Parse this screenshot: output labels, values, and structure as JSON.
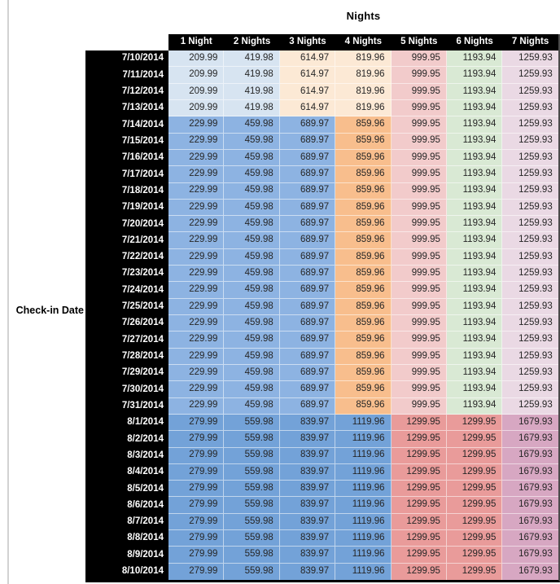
{
  "title": "Nights",
  "y_axis_label": "Check-in Date",
  "columns": [
    "1 Night",
    "2 Nights",
    "3 Nights",
    "4 Nights",
    "5 Nights",
    "6 Nights",
    "7 Nights"
  ],
  "colors": {
    "header_bg": "#000000",
    "header_text": "#ffffff",
    "value_text": "#262626",
    "zones": {
      "A": [
        "#D7E4F1",
        "#D7E4F1",
        "#FCE9D5",
        "#FCE9D5",
        "#F2CBCB",
        "#D9E9D4",
        "#EAD9E4"
      ],
      "B": [
        "#8DB3E2",
        "#8DB3E2",
        "#8DB3E2",
        "#F8BE8D",
        "#F2CBCB",
        "#D9E9D4",
        "#EAD9E4"
      ],
      "C": [
        "#73A2D8",
        "#73A2D8",
        "#73A2D8",
        "#73A2D8",
        "#E99B9A",
        "#E99B9A",
        "#D7A7C2"
      ]
    }
  },
  "chart_data": {
    "type": "table",
    "title": "Nights",
    "row_axis_label": "Check-in Date",
    "columns": [
      "1 Night",
      "2 Nights",
      "3 Nights",
      "4 Nights",
      "5 Nights",
      "6 Nights",
      "7 Nights"
    ]
  },
  "rows": [
    {
      "date": "7/10/2014",
      "zone": "A",
      "values": [
        "209.99",
        "419.98",
        "614.97",
        "819.96",
        "999.95",
        "1193.94",
        "1259.93"
      ]
    },
    {
      "date": "7/11/2014",
      "zone": "A",
      "values": [
        "209.99",
        "419.98",
        "614.97",
        "819.96",
        "999.95",
        "1193.94",
        "1259.93"
      ]
    },
    {
      "date": "7/12/2014",
      "zone": "A",
      "values": [
        "209.99",
        "419.98",
        "614.97",
        "819.96",
        "999.95",
        "1193.94",
        "1259.93"
      ]
    },
    {
      "date": "7/13/2014",
      "zone": "A",
      "values": [
        "209.99",
        "419.98",
        "614.97",
        "819.96",
        "999.95",
        "1193.94",
        "1259.93"
      ]
    },
    {
      "date": "7/14/2014",
      "zone": "B",
      "values": [
        "229.99",
        "459.98",
        "689.97",
        "859.96",
        "999.95",
        "1193.94",
        "1259.93"
      ]
    },
    {
      "date": "7/15/2014",
      "zone": "B",
      "values": [
        "229.99",
        "459.98",
        "689.97",
        "859.96",
        "999.95",
        "1193.94",
        "1259.93"
      ]
    },
    {
      "date": "7/16/2014",
      "zone": "B",
      "values": [
        "229.99",
        "459.98",
        "689.97",
        "859.96",
        "999.95",
        "1193.94",
        "1259.93"
      ]
    },
    {
      "date": "7/17/2014",
      "zone": "B",
      "values": [
        "229.99",
        "459.98",
        "689.97",
        "859.96",
        "999.95",
        "1193.94",
        "1259.93"
      ]
    },
    {
      "date": "7/18/2014",
      "zone": "B",
      "values": [
        "229.99",
        "459.98",
        "689.97",
        "859.96",
        "999.95",
        "1193.94",
        "1259.93"
      ]
    },
    {
      "date": "7/19/2014",
      "zone": "B",
      "values": [
        "229.99",
        "459.98",
        "689.97",
        "859.96",
        "999.95",
        "1193.94",
        "1259.93"
      ]
    },
    {
      "date": "7/20/2014",
      "zone": "B",
      "values": [
        "229.99",
        "459.98",
        "689.97",
        "859.96",
        "999.95",
        "1193.94",
        "1259.93"
      ]
    },
    {
      "date": "7/21/2014",
      "zone": "B",
      "values": [
        "229.99",
        "459.98",
        "689.97",
        "859.96",
        "999.95",
        "1193.94",
        "1259.93"
      ]
    },
    {
      "date": "7/22/2014",
      "zone": "B",
      "values": [
        "229.99",
        "459.98",
        "689.97",
        "859.96",
        "999.95",
        "1193.94",
        "1259.93"
      ]
    },
    {
      "date": "7/23/2014",
      "zone": "B",
      "values": [
        "229.99",
        "459.98",
        "689.97",
        "859.96",
        "999.95",
        "1193.94",
        "1259.93"
      ]
    },
    {
      "date": "7/24/2014",
      "zone": "B",
      "values": [
        "229.99",
        "459.98",
        "689.97",
        "859.96",
        "999.95",
        "1193.94",
        "1259.93"
      ]
    },
    {
      "date": "7/25/2014",
      "zone": "B",
      "values": [
        "229.99",
        "459.98",
        "689.97",
        "859.96",
        "999.95",
        "1193.94",
        "1259.93"
      ]
    },
    {
      "date": "7/26/2014",
      "zone": "B",
      "values": [
        "229.99",
        "459.98",
        "689.97",
        "859.96",
        "999.95",
        "1193.94",
        "1259.93"
      ]
    },
    {
      "date": "7/27/2014",
      "zone": "B",
      "values": [
        "229.99",
        "459.98",
        "689.97",
        "859.96",
        "999.95",
        "1193.94",
        "1259.93"
      ]
    },
    {
      "date": "7/28/2014",
      "zone": "B",
      "values": [
        "229.99",
        "459.98",
        "689.97",
        "859.96",
        "999.95",
        "1193.94",
        "1259.93"
      ]
    },
    {
      "date": "7/29/2014",
      "zone": "B",
      "values": [
        "229.99",
        "459.98",
        "689.97",
        "859.96",
        "999.95",
        "1193.94",
        "1259.93"
      ]
    },
    {
      "date": "7/30/2014",
      "zone": "B",
      "values": [
        "229.99",
        "459.98",
        "689.97",
        "859.96",
        "999.95",
        "1193.94",
        "1259.93"
      ]
    },
    {
      "date": "7/31/2014",
      "zone": "B",
      "values": [
        "229.99",
        "459.98",
        "689.97",
        "859.96",
        "999.95",
        "1193.94",
        "1259.93"
      ]
    },
    {
      "date": "8/1/2014",
      "zone": "C",
      "values": [
        "279.99",
        "559.98",
        "839.97",
        "1119.96",
        "1299.95",
        "1299.95",
        "1679.93"
      ]
    },
    {
      "date": "8/2/2014",
      "zone": "C",
      "values": [
        "279.99",
        "559.98",
        "839.97",
        "1119.96",
        "1299.95",
        "1299.95",
        "1679.93"
      ]
    },
    {
      "date": "8/3/2014",
      "zone": "C",
      "values": [
        "279.99",
        "559.98",
        "839.97",
        "1119.96",
        "1299.95",
        "1299.95",
        "1679.93"
      ]
    },
    {
      "date": "8/4/2014",
      "zone": "C",
      "values": [
        "279.99",
        "559.98",
        "839.97",
        "1119.96",
        "1299.95",
        "1299.95",
        "1679.93"
      ]
    },
    {
      "date": "8/5/2014",
      "zone": "C",
      "values": [
        "279.99",
        "559.98",
        "839.97",
        "1119.96",
        "1299.95",
        "1299.95",
        "1679.93"
      ]
    },
    {
      "date": "8/6/2014",
      "zone": "C",
      "values": [
        "279.99",
        "559.98",
        "839.97",
        "1119.96",
        "1299.95",
        "1299.95",
        "1679.93"
      ]
    },
    {
      "date": "8/7/2014",
      "zone": "C",
      "values": [
        "279.99",
        "559.98",
        "839.97",
        "1119.96",
        "1299.95",
        "1299.95",
        "1679.93"
      ]
    },
    {
      "date": "8/8/2014",
      "zone": "C",
      "values": [
        "279.99",
        "559.98",
        "839.97",
        "1119.96",
        "1299.95",
        "1299.95",
        "1679.93"
      ]
    },
    {
      "date": "8/9/2014",
      "zone": "C",
      "values": [
        "279.99",
        "559.98",
        "839.97",
        "1119.96",
        "1299.95",
        "1299.95",
        "1679.93"
      ]
    },
    {
      "date": "8/10/2014",
      "zone": "C",
      "values": [
        "279.99",
        "559.98",
        "839.97",
        "1119.96",
        "1299.95",
        "1299.95",
        "1679.93"
      ]
    }
  ]
}
